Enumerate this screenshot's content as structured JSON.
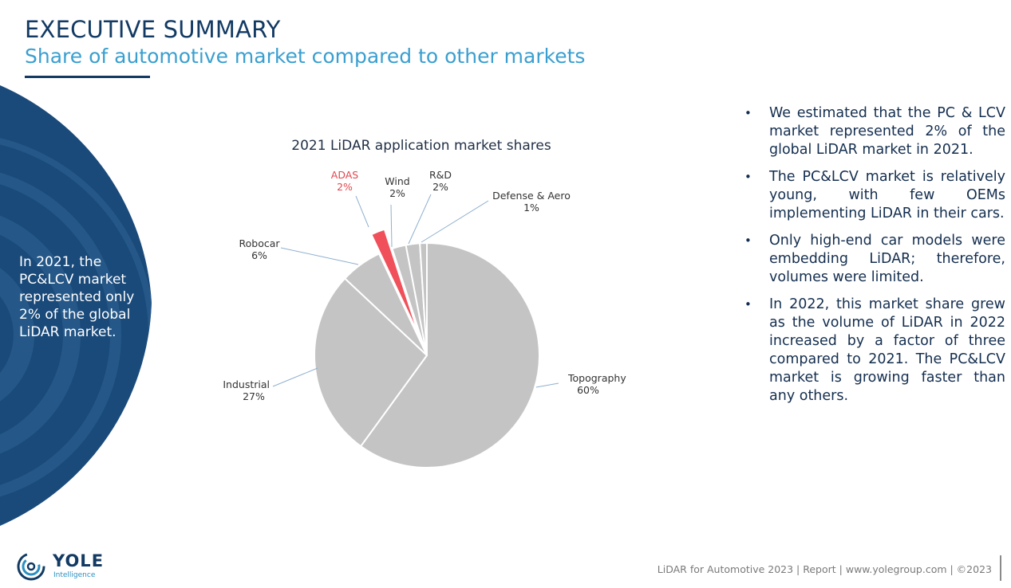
{
  "header": {
    "title": "EXECUTIVE SUMMARY",
    "subtitle": "Share of automotive market compared to other markets"
  },
  "sidebar": {
    "text": "In 2021, the PC&LCV market represented only 2% of the global LiDAR market."
  },
  "chart_data": {
    "type": "pie",
    "title": "2021 LiDAR application market shares",
    "categories": [
      "Topography",
      "Industrial",
      "Robocar",
      "ADAS",
      "Wind",
      "R&D",
      "Defense & Aero"
    ],
    "values": [
      60,
      27,
      6,
      2,
      2,
      2,
      1
    ],
    "value_labels": [
      "60%",
      "27%",
      "6%",
      "2%",
      "2%",
      "2%",
      "1%"
    ],
    "exploded": "ADAS",
    "colors": {
      "default": "#c4c4c4",
      "highlight": "#f0505a",
      "highlight_label": "#e0474f",
      "label": "#333333",
      "leader": "#8fb0cf"
    }
  },
  "bullets": [
    "We estimated that the PC & LCV market represented 2% of the global LiDAR market in 2021.",
    "The PC&LCV market is relatively young, with few OEMs implementing LiDAR in their cars.",
    "Only high-end car models were embedding LiDAR; therefore, volumes were limited.",
    "In 2022, this market share grew as the volume of LiDAR in 2022 increased by a factor of three compared to 2021. The PC&LCV market is growing faster than any others."
  ],
  "bullet_symbol": "•",
  "footer": {
    "text": "LiDAR for Automotive 2023 | Report | www.yolegroup.com | ©2023"
  },
  "logo": {
    "name": "YOLE",
    "sub": "Intelligence",
    "icon": "yole-spiral-logo-icon"
  },
  "theme": {
    "navy": "#123a63",
    "accent": "#3a9fd0"
  }
}
